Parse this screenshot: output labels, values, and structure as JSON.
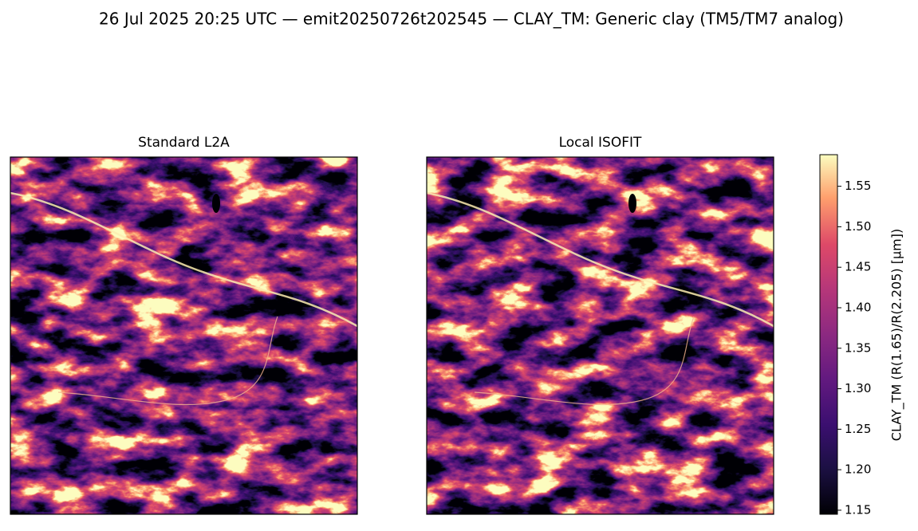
{
  "chart_data": {
    "type": "image-comparison",
    "title": "26 Jul 2025 20:25 UTC — emit20250726t202545 — CLAY_TM: Generic clay (TM5/TM7 analog)",
    "panels": [
      {
        "title": "Standard L2A"
      },
      {
        "title": "Local ISOFIT"
      }
    ],
    "colorbar_label": "CLAY_TM  (R(1.65)/R(2.205)  [µm])",
    "colormap": "magma",
    "ylim": [
      1.145,
      1.589
    ],
    "yticks": [
      1.15,
      {
        "value": 1.2,
        "label": "1.20"
      },
      1.25,
      {
        "value": 1.3,
        "label": "1.30"
      },
      1.35,
      {
        "value": 1.4,
        "label": "1.40"
      },
      1.45,
      {
        "value": 1.5,
        "label": "1.50"
      },
      1.55
    ]
  }
}
